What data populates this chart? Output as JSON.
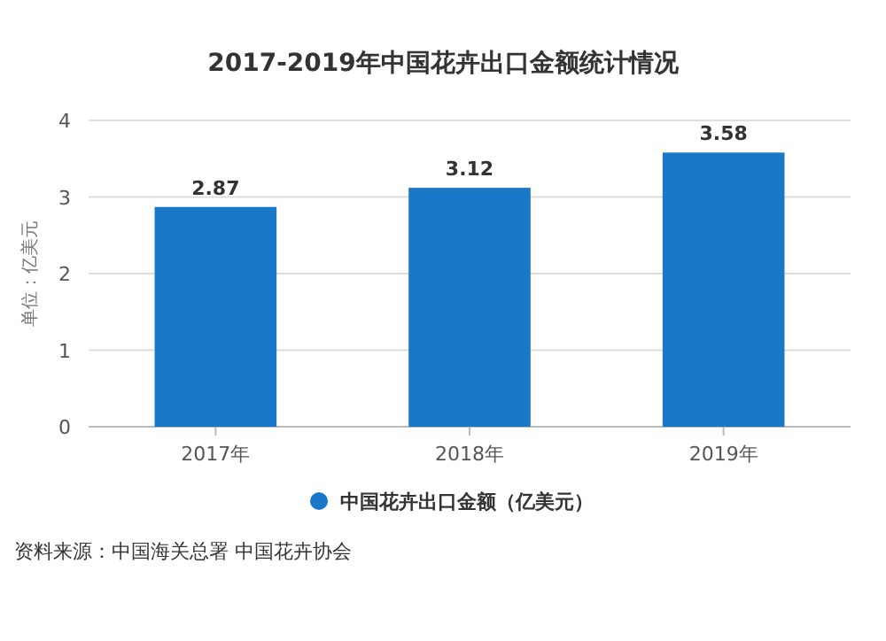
{
  "chart_data": {
    "type": "bar",
    "title": "2017-2019年中国花卉出口金额统计情况",
    "ylabel": "单位：亿美元",
    "categories": [
      "2017年",
      "2018年",
      "2019年"
    ],
    "series": [
      {
        "name": "中国花卉出口金额（亿美元）",
        "color": "#1a78c8",
        "values": [
          2.87,
          3.12,
          3.58
        ]
      }
    ],
    "ylim": [
      0,
      4
    ],
    "yticks": [
      0,
      1,
      2,
      3,
      4
    ],
    "grid": "y",
    "legend": "bottom",
    "data_labels": true,
    "annotations": [
      "资料来源：中国海关总署 中国花卉协会"
    ]
  }
}
